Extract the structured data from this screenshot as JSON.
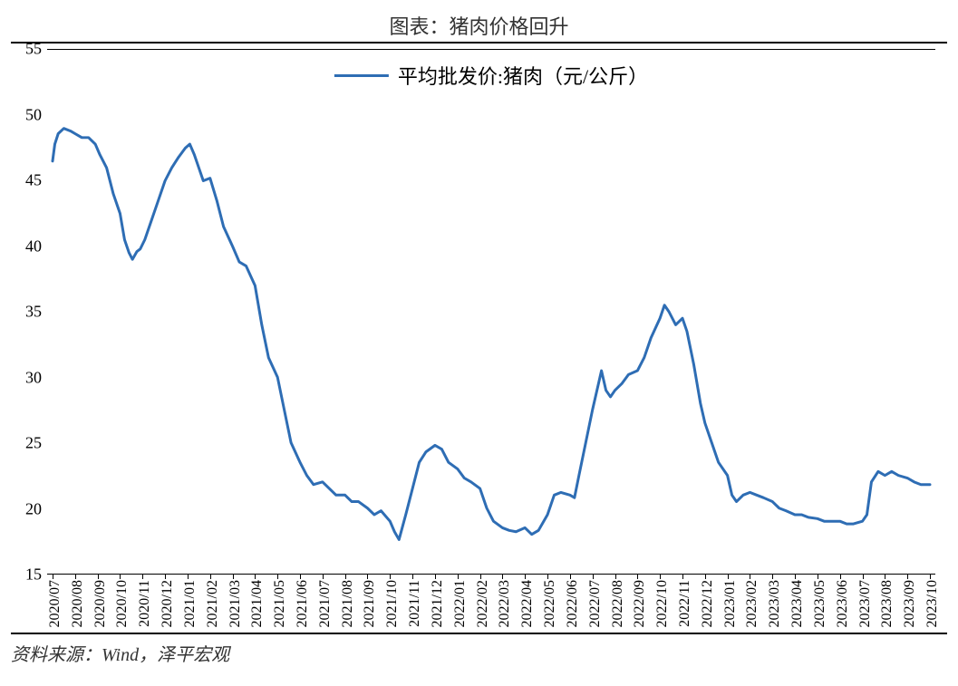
{
  "title": "图表：猪肉价格回升",
  "source": "资料来源：Wind，泽平宏观",
  "chart": {
    "type": "line",
    "legend_label": "平均批发价:猪肉（元/公斤）",
    "line_color": "#2e6db4",
    "line_width": 3,
    "background_color": "#ffffff",
    "axis_color": "#000000",
    "text_color": "#000000",
    "title_fontsize": 22,
    "label_fontsize": 18,
    "xlabel_fontsize": 16,
    "legend_fontsize": 22,
    "ylim": [
      15,
      55
    ],
    "ytick_step": 5,
    "yticks": [
      15,
      20,
      25,
      30,
      35,
      40,
      45,
      50,
      55
    ],
    "x_categories": [
      "2020/07",
      "2020/08",
      "2020/09",
      "2020/10",
      "2020/11",
      "2020/12",
      "2021/01",
      "2021/02",
      "2021/03",
      "2021/04",
      "2021/05",
      "2021/06",
      "2021/07",
      "2021/08",
      "2021/09",
      "2021/10",
      "2021/11",
      "2021/12",
      "2022/01",
      "2022/02",
      "2022/03",
      "2022/04",
      "2022/05",
      "2022/06",
      "2022/07",
      "2022/08",
      "2022/09",
      "2022/10",
      "2022/11",
      "2022/12",
      "2023/01",
      "2023/02",
      "2023/03",
      "2023/04",
      "2023/05",
      "2023/06",
      "2023/07",
      "2023/08",
      "2023/09",
      "2023/10"
    ],
    "series": [
      {
        "x": 0.0,
        "y": 46.5
      },
      {
        "x": 0.1,
        "y": 47.8
      },
      {
        "x": 0.25,
        "y": 48.6
      },
      {
        "x": 0.5,
        "y": 49.0
      },
      {
        "x": 0.8,
        "y": 48.8
      },
      {
        "x": 1.0,
        "y": 48.6
      },
      {
        "x": 1.3,
        "y": 48.3
      },
      {
        "x": 1.6,
        "y": 48.3
      },
      {
        "x": 1.9,
        "y": 47.8
      },
      {
        "x": 2.1,
        "y": 47.0
      },
      {
        "x": 2.4,
        "y": 46.0
      },
      {
        "x": 2.7,
        "y": 44.0
      },
      {
        "x": 3.0,
        "y": 42.5
      },
      {
        "x": 3.2,
        "y": 40.5
      },
      {
        "x": 3.4,
        "y": 39.5
      },
      {
        "x": 3.55,
        "y": 39.0
      },
      {
        "x": 3.75,
        "y": 39.6
      },
      {
        "x": 3.9,
        "y": 39.8
      },
      {
        "x": 4.1,
        "y": 40.5
      },
      {
        "x": 4.4,
        "y": 42.0
      },
      {
        "x": 4.7,
        "y": 43.5
      },
      {
        "x": 5.0,
        "y": 45.0
      },
      {
        "x": 5.3,
        "y": 46.0
      },
      {
        "x": 5.6,
        "y": 46.8
      },
      {
        "x": 5.9,
        "y": 47.5
      },
      {
        "x": 6.1,
        "y": 47.8
      },
      {
        "x": 6.3,
        "y": 47.0
      },
      {
        "x": 6.5,
        "y": 46.0
      },
      {
        "x": 6.7,
        "y": 45.0
      },
      {
        "x": 7.0,
        "y": 45.2
      },
      {
        "x": 7.3,
        "y": 43.5
      },
      {
        "x": 7.6,
        "y": 41.5
      },
      {
        "x": 8.0,
        "y": 40.0
      },
      {
        "x": 8.3,
        "y": 38.8
      },
      {
        "x": 8.6,
        "y": 38.5
      },
      {
        "x": 9.0,
        "y": 37.0
      },
      {
        "x": 9.3,
        "y": 34.0
      },
      {
        "x": 9.6,
        "y": 31.5
      },
      {
        "x": 10.0,
        "y": 30.0
      },
      {
        "x": 10.3,
        "y": 27.5
      },
      {
        "x": 10.6,
        "y": 25.0
      },
      {
        "x": 11.0,
        "y": 23.5
      },
      {
        "x": 11.3,
        "y": 22.5
      },
      {
        "x": 11.6,
        "y": 21.8
      },
      {
        "x": 12.0,
        "y": 22.0
      },
      {
        "x": 12.3,
        "y": 21.5
      },
      {
        "x": 12.6,
        "y": 21.0
      },
      {
        "x": 13.0,
        "y": 21.0
      },
      {
        "x": 13.3,
        "y": 20.5
      },
      {
        "x": 13.6,
        "y": 20.5
      },
      {
        "x": 14.0,
        "y": 20.0
      },
      {
        "x": 14.3,
        "y": 19.5
      },
      {
        "x": 14.6,
        "y": 19.8
      },
      {
        "x": 15.0,
        "y": 19.0
      },
      {
        "x": 15.2,
        "y": 18.2
      },
      {
        "x": 15.4,
        "y": 17.6
      },
      {
        "x": 15.7,
        "y": 19.5
      },
      {
        "x": 16.0,
        "y": 21.5
      },
      {
        "x": 16.3,
        "y": 23.5
      },
      {
        "x": 16.6,
        "y": 24.3
      },
      {
        "x": 17.0,
        "y": 24.8
      },
      {
        "x": 17.3,
        "y": 24.5
      },
      {
        "x": 17.6,
        "y": 23.5
      },
      {
        "x": 18.0,
        "y": 23.0
      },
      {
        "x": 18.3,
        "y": 22.3
      },
      {
        "x": 18.6,
        "y": 22.0
      },
      {
        "x": 19.0,
        "y": 21.5
      },
      {
        "x": 19.3,
        "y": 20.0
      },
      {
        "x": 19.6,
        "y": 19.0
      },
      {
        "x": 20.0,
        "y": 18.5
      },
      {
        "x": 20.3,
        "y": 18.3
      },
      {
        "x": 20.6,
        "y": 18.2
      },
      {
        "x": 21.0,
        "y": 18.5
      },
      {
        "x": 21.3,
        "y": 18.0
      },
      {
        "x": 21.6,
        "y": 18.3
      },
      {
        "x": 22.0,
        "y": 19.5
      },
      {
        "x": 22.3,
        "y": 21.0
      },
      {
        "x": 22.6,
        "y": 21.2
      },
      {
        "x": 23.0,
        "y": 21.0
      },
      {
        "x": 23.2,
        "y": 20.8
      },
      {
        "x": 23.4,
        "y": 22.5
      },
      {
        "x": 23.7,
        "y": 25.0
      },
      {
        "x": 24.0,
        "y": 27.5
      },
      {
        "x": 24.2,
        "y": 29.0
      },
      {
        "x": 24.4,
        "y": 30.5
      },
      {
        "x": 24.6,
        "y": 29.0
      },
      {
        "x": 24.8,
        "y": 28.5
      },
      {
        "x": 25.0,
        "y": 29.0
      },
      {
        "x": 25.3,
        "y": 29.5
      },
      {
        "x": 25.6,
        "y": 30.2
      },
      {
        "x": 26.0,
        "y": 30.5
      },
      {
        "x": 26.3,
        "y": 31.5
      },
      {
        "x": 26.6,
        "y": 33.0
      },
      {
        "x": 27.0,
        "y": 34.5
      },
      {
        "x": 27.2,
        "y": 35.5
      },
      {
        "x": 27.4,
        "y": 35.0
      },
      {
        "x": 27.7,
        "y": 34.0
      },
      {
        "x": 28.0,
        "y": 34.5
      },
      {
        "x": 28.2,
        "y": 33.5
      },
      {
        "x": 28.5,
        "y": 31.0
      },
      {
        "x": 28.8,
        "y": 28.0
      },
      {
        "x": 29.0,
        "y": 26.5
      },
      {
        "x": 29.3,
        "y": 25.0
      },
      {
        "x": 29.6,
        "y": 23.5
      },
      {
        "x": 30.0,
        "y": 22.5
      },
      {
        "x": 30.2,
        "y": 21.0
      },
      {
        "x": 30.4,
        "y": 20.5
      },
      {
        "x": 30.7,
        "y": 21.0
      },
      {
        "x": 31.0,
        "y": 21.2
      },
      {
        "x": 31.3,
        "y": 21.0
      },
      {
        "x": 31.6,
        "y": 20.8
      },
      {
        "x": 32.0,
        "y": 20.5
      },
      {
        "x": 32.3,
        "y": 20.0
      },
      {
        "x": 32.6,
        "y": 19.8
      },
      {
        "x": 33.0,
        "y": 19.5
      },
      {
        "x": 33.3,
        "y": 19.5
      },
      {
        "x": 33.6,
        "y": 19.3
      },
      {
        "x": 34.0,
        "y": 19.2
      },
      {
        "x": 34.3,
        "y": 19.0
      },
      {
        "x": 34.6,
        "y": 19.0
      },
      {
        "x": 35.0,
        "y": 19.0
      },
      {
        "x": 35.3,
        "y": 18.8
      },
      {
        "x": 35.6,
        "y": 18.8
      },
      {
        "x": 36.0,
        "y": 19.0
      },
      {
        "x": 36.2,
        "y": 19.5
      },
      {
        "x": 36.4,
        "y": 22.0
      },
      {
        "x": 36.7,
        "y": 22.8
      },
      {
        "x": 37.0,
        "y": 22.5
      },
      {
        "x": 37.3,
        "y": 22.8
      },
      {
        "x": 37.6,
        "y": 22.5
      },
      {
        "x": 38.0,
        "y": 22.3
      },
      {
        "x": 38.3,
        "y": 22.0
      },
      {
        "x": 38.6,
        "y": 21.8
      },
      {
        "x": 39.0,
        "y": 21.8
      }
    ]
  }
}
